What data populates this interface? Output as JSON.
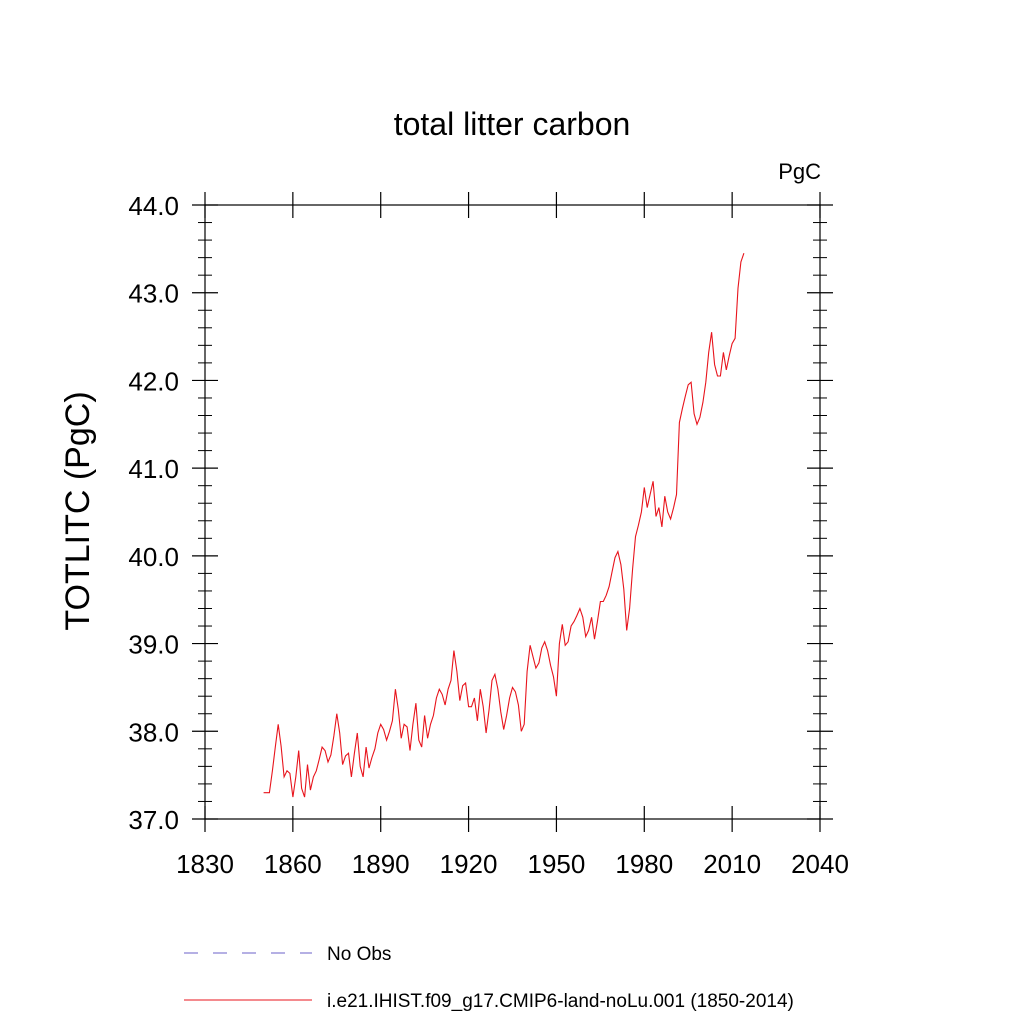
{
  "chart_data": {
    "type": "line",
    "title": "total litter carbon",
    "units_label": "PgC",
    "ylabel": "TOTLITC  (PgC)",
    "xlabel": "",
    "xlim": [
      1830,
      2040
    ],
    "ylim": [
      37.0,
      44.0
    ],
    "x_ticks": [
      1830,
      1860,
      1890,
      1920,
      1950,
      1980,
      2010,
      2040
    ],
    "x_tick_labels": [
      "1830",
      "1860",
      "1890",
      "1920",
      "1950",
      "1980",
      "2010",
      "2040"
    ],
    "y_ticks": [
      37.0,
      38.0,
      39.0,
      40.0,
      41.0,
      42.0,
      43.0,
      44.0
    ],
    "y_tick_labels": [
      "37.0",
      "38.0",
      "39.0",
      "40.0",
      "41.0",
      "42.0",
      "43.0",
      "44.0"
    ],
    "grid": false,
    "legend_position": "bottom",
    "series": [
      {
        "name": "No Obs",
        "color": "#6b62c8",
        "style": "dashed",
        "x": [],
        "y": []
      },
      {
        "name": "i.e21.IHIST.f09_g17.CMIP6-land-noLu.001 (1850-2014)",
        "color": "#e8141c",
        "style": "solid",
        "x": [
          1850,
          1851,
          1852,
          1853,
          1854,
          1855,
          1856,
          1857,
          1858,
          1859,
          1860,
          1861,
          1862,
          1863,
          1864,
          1865,
          1866,
          1867,
          1868,
          1869,
          1870,
          1871,
          1872,
          1873,
          1874,
          1875,
          1876,
          1877,
          1878,
          1879,
          1880,
          1881,
          1882,
          1883,
          1884,
          1885,
          1886,
          1887,
          1888,
          1889,
          1890,
          1891,
          1892,
          1893,
          1894,
          1895,
          1896,
          1897,
          1898,
          1899,
          1900,
          1901,
          1902,
          1903,
          1904,
          1905,
          1906,
          1907,
          1908,
          1909,
          1910,
          1911,
          1912,
          1913,
          1914,
          1915,
          1916,
          1917,
          1918,
          1919,
          1920,
          1921,
          1922,
          1923,
          1924,
          1925,
          1926,
          1927,
          1928,
          1929,
          1930,
          1931,
          1932,
          1933,
          1934,
          1935,
          1936,
          1937,
          1938,
          1939,
          1940,
          1941,
          1942,
          1943,
          1944,
          1945,
          1946,
          1947,
          1948,
          1949,
          1950,
          1951,
          1952,
          1953,
          1954,
          1955,
          1956,
          1957,
          1958,
          1959,
          1960,
          1961,
          1962,
          1963,
          1964,
          1965,
          1966,
          1967,
          1968,
          1969,
          1970,
          1971,
          1972,
          1973,
          1974,
          1975,
          1976,
          1977,
          1978,
          1979,
          1980,
          1981,
          1982,
          1983,
          1984,
          1985,
          1986,
          1987,
          1988,
          1989,
          1990,
          1991,
          1992,
          1993,
          1994,
          1995,
          1996,
          1997,
          1998,
          1999,
          2000,
          2001,
          2002,
          2003,
          2004,
          2005,
          2006,
          2007,
          2008,
          2009,
          2010,
          2011,
          2012,
          2013,
          2014
        ],
        "y": [
          37.3,
          37.3,
          37.3,
          37.55,
          37.82,
          38.08,
          37.83,
          37.48,
          37.55,
          37.52,
          37.25,
          37.48,
          37.78,
          37.35,
          37.25,
          37.62,
          37.33,
          37.48,
          37.55,
          37.68,
          37.82,
          37.78,
          37.65,
          37.73,
          37.95,
          38.2,
          37.98,
          37.62,
          37.72,
          37.75,
          37.48,
          37.75,
          37.98,
          37.6,
          37.48,
          37.82,
          37.58,
          37.7,
          37.8,
          37.98,
          38.08,
          38.02,
          37.9,
          38.0,
          38.12,
          38.48,
          38.25,
          37.92,
          38.08,
          38.05,
          37.78,
          38.08,
          38.32,
          37.9,
          37.82,
          38.18,
          37.92,
          38.08,
          38.18,
          38.38,
          38.48,
          38.42,
          38.3,
          38.48,
          38.58,
          38.92,
          38.68,
          38.35,
          38.52,
          38.55,
          38.28,
          38.28,
          38.38,
          38.12,
          38.48,
          38.28,
          37.98,
          38.25,
          38.58,
          38.65,
          38.48,
          38.22,
          38.02,
          38.18,
          38.38,
          38.5,
          38.45,
          38.3,
          38.0,
          38.08,
          38.68,
          38.98,
          38.85,
          38.72,
          38.78,
          38.95,
          39.02,
          38.92,
          38.75,
          38.62,
          38.4,
          39.0,
          39.22,
          38.98,
          39.02,
          39.2,
          39.25,
          39.32,
          39.4,
          39.3,
          39.08,
          39.15,
          39.3,
          39.05,
          39.25,
          39.48,
          39.48,
          39.55,
          39.65,
          39.82,
          39.98,
          40.05,
          39.9,
          39.62,
          39.15,
          39.4,
          39.85,
          40.22,
          40.35,
          40.5,
          40.78,
          40.55,
          40.7,
          40.85,
          40.45,
          40.55,
          40.33,
          40.68,
          40.5,
          40.42,
          40.55,
          40.7,
          41.52,
          41.68,
          41.82,
          41.95,
          41.98,
          41.62,
          41.5,
          41.58,
          41.75,
          41.98,
          42.32,
          42.55,
          42.18,
          42.05,
          42.05,
          42.32,
          42.12,
          42.28,
          42.42,
          42.48,
          43.05,
          43.35,
          43.45
        ]
      }
    ]
  }
}
